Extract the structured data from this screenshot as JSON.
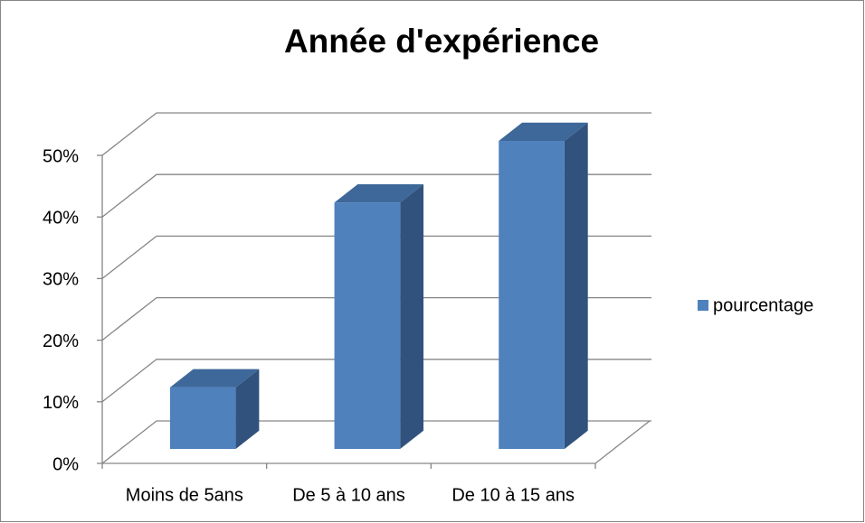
{
  "chart_data": {
    "type": "bar3d",
    "title": "Année d'expérience",
    "categories": [
      "Moins de 5ans",
      "De 5 à 10 ans",
      "De 10 à 15 ans"
    ],
    "series": [
      {
        "name": "pourcentage",
        "color": "#4f81bd",
        "values": [
          10,
          40,
          50
        ]
      }
    ],
    "ylim": [
      0,
      50
    ],
    "yticks": [
      {
        "value": 0,
        "label": "0%"
      },
      {
        "value": 10,
        "label": "10%"
      },
      {
        "value": 20,
        "label": "20%"
      },
      {
        "value": 30,
        "label": "30%"
      },
      {
        "value": 40,
        "label": "40%"
      },
      {
        "value": 50,
        "label": "50%"
      }
    ],
    "grid": true,
    "legend": "right"
  }
}
